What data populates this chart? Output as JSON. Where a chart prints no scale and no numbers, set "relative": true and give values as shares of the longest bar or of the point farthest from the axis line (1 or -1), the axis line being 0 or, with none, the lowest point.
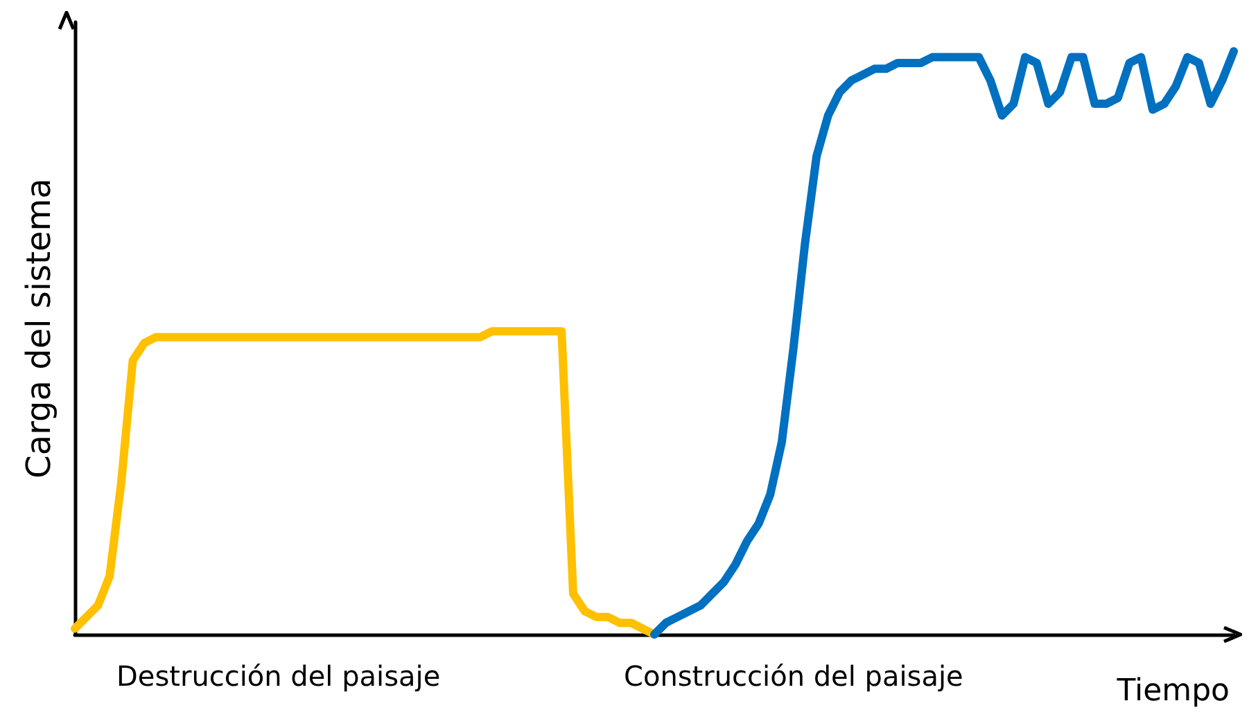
{
  "chart_data": {
    "type": "line",
    "relative": true,
    "xlabel": "Tiempo",
    "ylabel": "Carga del sistema",
    "grid": false,
    "annotations": [
      "Destrucción del paisaje",
      "Construcción del paisaje"
    ],
    "categories": [
      null,
      null,
      null,
      null,
      null,
      null,
      null,
      null,
      null,
      null,
      null,
      null,
      null,
      null,
      null,
      null,
      null,
      null,
      null,
      null,
      null,
      null,
      null,
      null,
      null,
      null,
      null,
      null,
      null,
      null,
      null,
      null,
      null,
      null,
      null,
      null,
      null,
      null,
      null,
      null,
      null,
      null,
      null,
      null,
      null,
      null,
      null,
      null,
      null,
      null,
      null,
      null,
      null,
      null,
      null,
      null,
      null,
      null,
      null,
      null,
      null,
      null,
      null,
      null,
      null,
      null,
      null,
      null,
      null,
      null,
      null,
      null,
      null,
      null,
      null,
      null,
      null,
      null,
      null,
      null,
      null,
      null,
      null,
      null,
      null,
      null,
      null,
      null,
      null,
      null,
      null,
      null,
      null,
      null,
      null,
      null,
      null,
      null,
      null,
      null,
      null
    ],
    "series": [
      {
        "color": "#ffc000",
        "values": [
          0.01,
          0.03,
          0.05,
          0.1,
          0.26,
          0.47,
          0.5,
          0.51,
          0.51,
          0.51,
          0.51,
          0.51,
          0.51,
          0.51,
          0.51,
          0.51,
          0.51,
          0.51,
          0.51,
          0.51,
          0.51,
          0.51,
          0.51,
          0.51,
          0.51,
          0.51,
          0.51,
          0.51,
          0.51,
          0.51,
          0.51,
          0.51,
          0.51,
          0.51,
          0.51,
          0.51,
          0.52,
          0.52,
          0.52,
          0.52,
          0.52,
          0.52,
          0.52,
          0.07,
          0.04,
          0.03,
          0.03,
          0.02,
          0.02,
          0.01,
          0,
          null,
          null,
          null,
          null,
          null,
          null,
          null,
          null,
          null,
          null,
          null,
          null,
          null,
          null,
          null,
          null,
          null,
          null,
          null,
          null,
          null,
          null,
          null,
          null,
          null,
          null,
          null,
          null,
          null,
          null,
          null,
          null,
          null,
          null,
          null,
          null,
          null,
          null,
          null,
          null,
          null,
          null,
          null,
          null,
          null,
          null,
          null,
          null,
          null,
          null
        ]
      },
      {
        "color": "#0070c0",
        "values": [
          null,
          null,
          null,
          null,
          null,
          null,
          null,
          null,
          null,
          null,
          null,
          null,
          null,
          null,
          null,
          null,
          null,
          null,
          null,
          null,
          null,
          null,
          null,
          null,
          null,
          null,
          null,
          null,
          null,
          null,
          null,
          null,
          null,
          null,
          null,
          null,
          null,
          null,
          null,
          null,
          null,
          null,
          null,
          null,
          null,
          null,
          null,
          null,
          null,
          null,
          0,
          0.02,
          0.03,
          0.04,
          0.05,
          0.07,
          0.09,
          0.12,
          0.16,
          0.19,
          0.24,
          0.33,
          0.49,
          0.67,
          0.82,
          0.89,
          0.93,
          0.95,
          0.96,
          0.97,
          0.97,
          0.98,
          0.98,
          0.98,
          0.99,
          0.99,
          0.99,
          0.99,
          0.99,
          0.95,
          0.89,
          0.91,
          0.99,
          0.98,
          0.91,
          0.93,
          0.99,
          0.99,
          0.91,
          0.91,
          0.92,
          0.98,
          0.99,
          0.9,
          0.91,
          0.94,
          0.99,
          0.98,
          0.91,
          0.95,
          1.0
        ]
      }
    ]
  }
}
